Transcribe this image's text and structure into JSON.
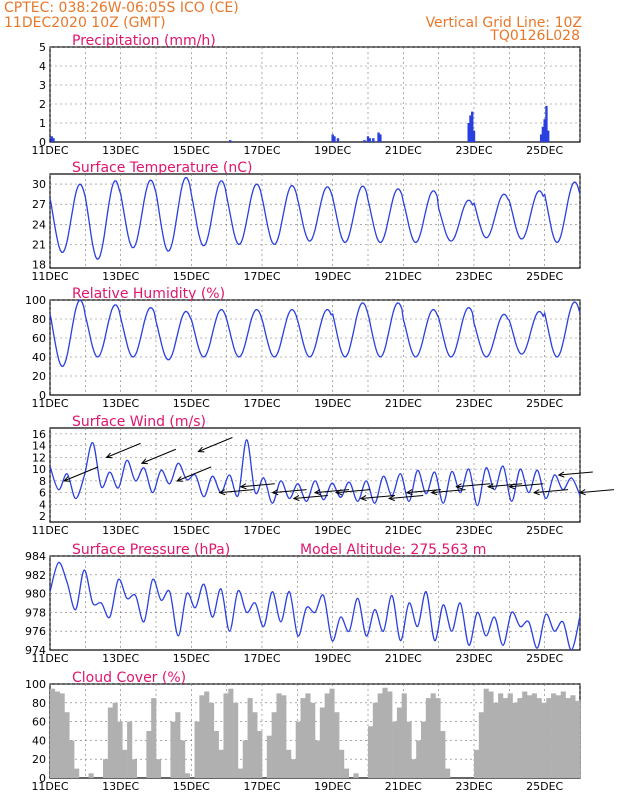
{
  "header": {
    "line1": "CPTEC:   038:26W-06:05S   ICO (CE)",
    "line2": "11DEC2020 10Z (GMT)",
    "right1": "Vertical Grid Line: 10Z",
    "right2": "TQ0126L028"
  },
  "colors": {
    "header": "#e8772a",
    "title": "#e0156e",
    "line": "#2a3fe0",
    "bar": "#2a3fe0",
    "cloud": "#b0b0b0",
    "grid": "#777777"
  },
  "x_date_labels": [
    "11DEC",
    "13DEC",
    "15DEC",
    "17DEC",
    "19DEC",
    "21DEC",
    "23DEC",
    "25DEC"
  ],
  "chart_data": [
    {
      "id": "precip",
      "type": "bar",
      "title": "Precipitation (mm/h)",
      "ylim": [
        0,
        5
      ],
      "yticks": [
        "0",
        "1",
        "2",
        "3",
        "4",
        "5"
      ],
      "xlim_days": [
        11.0,
        26.0
      ],
      "bars": [
        [
          11.05,
          0.3
        ],
        [
          11.1,
          0.2
        ],
        [
          16.1,
          0.1
        ],
        [
          19.0,
          0.4
        ],
        [
          19.05,
          0.3
        ],
        [
          19.15,
          0.2
        ],
        [
          19.9,
          0.1
        ],
        [
          20.0,
          0.3
        ],
        [
          20.05,
          0.2
        ],
        [
          20.15,
          0.2
        ],
        [
          20.3,
          0.5
        ],
        [
          20.35,
          0.4
        ],
        [
          22.85,
          1.0
        ],
        [
          22.9,
          1.4
        ],
        [
          22.95,
          1.6
        ],
        [
          23.0,
          0.6
        ],
        [
          24.9,
          0.4
        ],
        [
          24.95,
          0.8
        ],
        [
          25.0,
          1.2
        ],
        [
          25.05,
          1.9
        ],
        [
          25.1,
          0.6
        ]
      ],
      "grid": true
    },
    {
      "id": "temp",
      "type": "line",
      "title": "Surface Temperature (nC)",
      "ylim": [
        17.5,
        31.5
      ],
      "yticks": [
        "18",
        "21",
        "24",
        "27",
        "30"
      ],
      "xlim_days": [
        11.0,
        26.0
      ],
      "daily_max": [
        30.0,
        30.5,
        30.6,
        31.0,
        30.5,
        30.0,
        29.8,
        29.6,
        29.7,
        29.3,
        29.0,
        27.6,
        28.5,
        29.0,
        30.3
      ],
      "daily_min": [
        19.8,
        18.8,
        20.5,
        20.0,
        20.8,
        21.0,
        21.0,
        21.5,
        21.3,
        21.3,
        21.3,
        21.5,
        22.0,
        21.8,
        21.3
      ],
      "grid": true
    },
    {
      "id": "rh",
      "type": "line",
      "title": "Relative Humidity (%)",
      "ylim": [
        0,
        100
      ],
      "yticks": [
        "0",
        "20",
        "40",
        "60",
        "80",
        "100"
      ],
      "xlim_days": [
        11.0,
        26.0
      ],
      "daily_max": [
        100,
        95,
        92,
        88,
        90,
        90,
        90,
        90,
        97,
        97,
        90,
        92,
        85,
        88,
        98
      ],
      "daily_min": [
        30,
        40,
        40,
        37,
        40,
        40,
        40,
        40,
        40,
        40,
        40,
        40,
        40,
        43,
        40
      ],
      "grid": true
    },
    {
      "id": "wind",
      "type": "line",
      "title": "Surface Wind (m/s)",
      "ylim": [
        1,
        17
      ],
      "yticks": [
        "2",
        "4",
        "6",
        "8",
        "10",
        "12",
        "14",
        "16"
      ],
      "xlim_days": [
        11.0,
        26.0
      ],
      "speed": [
        10.5,
        6.5,
        9.2,
        5.0,
        8.8,
        14.5,
        7.0,
        9.5,
        6.8,
        11.5,
        8.0,
        10.2,
        6.0,
        9.8,
        7.5,
        11.0,
        8.2,
        9.0,
        5.3,
        8.8,
        6.0,
        9.0,
        5.5,
        15.0,
        6.0,
        8.5,
        4.2,
        8.0,
        5.0,
        7.5,
        4.5,
        8.0,
        4.8,
        7.6,
        5.2,
        7.8,
        4.5,
        8.0,
        4.2,
        8.8,
        5.5,
        9.2,
        4.5,
        9.8,
        5.8,
        9.5,
        4.2,
        9.6,
        6.0,
        10.0,
        3.8,
        10.2,
        6.5,
        10.5,
        4.5,
        10.0,
        6.0,
        9.8,
        5.0,
        9.0,
        6.5,
        8.5,
        5.5
      ],
      "arrows": [
        [
          11.4,
          8
        ],
        [
          12.6,
          12
        ],
        [
          13.6,
          11
        ],
        [
          14.6,
          8
        ],
        [
          15.2,
          13
        ],
        [
          15.8,
          6
        ],
        [
          16.4,
          7
        ],
        [
          17.3,
          6
        ],
        [
          17.9,
          5
        ],
        [
          18.5,
          6
        ],
        [
          19.1,
          6
        ],
        [
          19.8,
          5
        ],
        [
          20.6,
          5
        ],
        [
          21.1,
          6
        ],
        [
          21.8,
          6
        ],
        [
          22.5,
          7
        ],
        [
          23.4,
          7
        ],
        [
          24.0,
          7
        ],
        [
          24.7,
          6
        ],
        [
          25.4,
          9
        ],
        [
          26.0,
          6
        ]
      ],
      "grid": true
    },
    {
      "id": "pressure",
      "type": "line",
      "title": "Surface Pressure (hPa)",
      "annotation": "Model Altitude: 275.563 m",
      "ylim": [
        974,
        984
      ],
      "yticks": [
        "974",
        "976",
        "978",
        "980",
        "982",
        "984"
      ],
      "xlim_days": [
        11.0,
        26.0
      ],
      "values": [
        980.2,
        983.3,
        981.2,
        978.3,
        982.5,
        979.0,
        979.0,
        977.5,
        981.5,
        979.5,
        979.8,
        977.0,
        981.5,
        979.3,
        980.2,
        975.5,
        980.0,
        978.5,
        981.0,
        977.5,
        980.5,
        976.0,
        980.3,
        978.0,
        979.0,
        976.5,
        980.2,
        977.0,
        980.2,
        975.5,
        978.5,
        978.0,
        979.8,
        975.0,
        977.5,
        976.0,
        979.5,
        975.5,
        978.3,
        976.0,
        979.8,
        975.0,
        979.0,
        976.5,
        980.2,
        975.0,
        978.8,
        976.0,
        979.0,
        974.5,
        978.0,
        975.5,
        977.5,
        974.5,
        978.0,
        976.5,
        977.0,
        974.2,
        977.8,
        976.0,
        977.0,
        974.0,
        977.6
      ],
      "grid": true
    },
    {
      "id": "cloud",
      "type": "area",
      "title": "Cloud Cover (%)",
      "ylim": [
        0,
        100
      ],
      "yticks": [
        "0",
        "20",
        "40",
        "60",
        "80",
        "100"
      ],
      "xlim_days": [
        11.0,
        26.0
      ],
      "values": [
        95,
        92,
        90,
        70,
        40,
        10,
        0,
        0,
        5,
        0,
        0,
        20,
        75,
        80,
        60,
        30,
        60,
        20,
        0,
        0,
        50,
        85,
        20,
        0,
        0,
        60,
        70,
        40,
        5,
        0,
        60,
        88,
        92,
        80,
        50,
        30,
        90,
        95,
        80,
        10,
        40,
        85,
        70,
        50,
        0,
        45,
        70,
        90,
        88,
        30,
        20,
        60,
        85,
        90,
        80,
        40,
        75,
        90,
        95,
        70,
        30,
        10,
        0,
        5,
        0,
        0,
        55,
        80,
        90,
        96,
        92,
        60,
        75,
        90,
        60,
        20,
        40,
        60,
        85,
        90,
        85,
        50,
        10,
        0,
        0,
        0,
        0,
        0,
        30,
        70,
        95,
        92,
        80,
        90,
        85,
        90,
        80,
        85,
        92,
        88,
        90,
        85,
        80,
        85,
        90,
        88,
        92,
        85,
        88,
        82
      ],
      "grid": true
    }
  ]
}
